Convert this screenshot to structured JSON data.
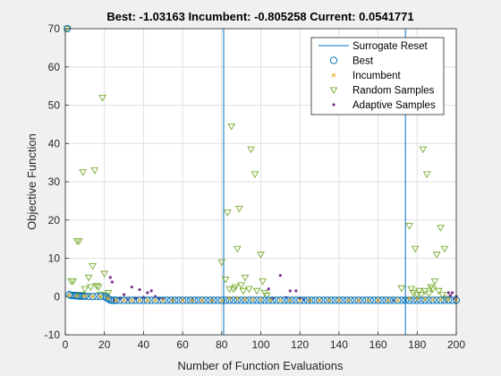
{
  "chart_data": {
    "type": "scatter",
    "title": "Best: -1.03163 Incumbent: -0.805258 Current: 0.0541771",
    "xlabel": "Number of Function Evaluations",
    "ylabel": "Objective Function",
    "xlim": [
      0,
      200
    ],
    "ylim": [
      -10,
      70
    ],
    "xticks": [
      0,
      20,
      40,
      60,
      80,
      100,
      120,
      140,
      160,
      180,
      200
    ],
    "yticks": [
      -10,
      0,
      10,
      20,
      30,
      40,
      50,
      60,
      70
    ],
    "grid": true,
    "legend_position": "top-right",
    "surrogate_resets": [
      81,
      174
    ],
    "legend": [
      {
        "label": "Surrogate Reset",
        "marker": "line",
        "color": "#0072BD"
      },
      {
        "label": "Best",
        "marker": "circle",
        "color": "#0072BD"
      },
      {
        "label": "Incumbent",
        "marker": "x",
        "color": "#EDB120"
      },
      {
        "label": "Random Samples",
        "marker": "triangle",
        "color": "#77AC30"
      },
      {
        "label": "Adaptive Samples",
        "marker": "dot",
        "color": "#7E2F8E"
      }
    ],
    "series": [
      {
        "name": "Random Samples",
        "points": [
          [
            1,
            70
          ],
          [
            3,
            4
          ],
          [
            4,
            4
          ],
          [
            5,
            0.5
          ],
          [
            6,
            14.5
          ],
          [
            7,
            14.5
          ],
          [
            8,
            0.5
          ],
          [
            9,
            32.5
          ],
          [
            10,
            2
          ],
          [
            11,
            0.2
          ],
          [
            12,
            5
          ],
          [
            13,
            2.5
          ],
          [
            14,
            8
          ],
          [
            15,
            33
          ],
          [
            16,
            2.8
          ],
          [
            17,
            2.5
          ],
          [
            18,
            0.5
          ],
          [
            19,
            52
          ],
          [
            20,
            6
          ],
          [
            21,
            0.3
          ],
          [
            22,
            1
          ],
          [
            80,
            9
          ],
          [
            82,
            4.5
          ],
          [
            83,
            22
          ],
          [
            84,
            2
          ],
          [
            85,
            44.5
          ],
          [
            86,
            2
          ],
          [
            87,
            2.5
          ],
          [
            88,
            12.5
          ],
          [
            89,
            23
          ],
          [
            90,
            3
          ],
          [
            91,
            1.5
          ],
          [
            92,
            5
          ],
          [
            94,
            2
          ],
          [
            95,
            38.5
          ],
          [
            97,
            32
          ],
          [
            98,
            1.5
          ],
          [
            100,
            11
          ],
          [
            101,
            4
          ],
          [
            102,
            1
          ],
          [
            103,
            0.3
          ],
          [
            172,
            2.2
          ],
          [
            176,
            18.5
          ],
          [
            177,
            2
          ],
          [
            178,
            1
          ],
          [
            179,
            12.5
          ],
          [
            180,
            0.5
          ],
          [
            181,
            1.5
          ],
          [
            182,
            0.5
          ],
          [
            183,
            38.5
          ],
          [
            184,
            1.5
          ],
          [
            185,
            32
          ],
          [
            186,
            0.8
          ],
          [
            187,
            2.5
          ],
          [
            188,
            2
          ],
          [
            189,
            4
          ],
          [
            190,
            11
          ],
          [
            191,
            1.5
          ],
          [
            192,
            18
          ],
          [
            193,
            0.5
          ],
          [
            194,
            12.5
          ],
          [
            195,
            -0.5
          ]
        ]
      },
      {
        "name": "Adaptive Samples",
        "points": [
          [
            23,
            5
          ],
          [
            24,
            3.8
          ],
          [
            25,
            -1
          ],
          [
            28,
            -0.5
          ],
          [
            30,
            0.5
          ],
          [
            32,
            -0.8
          ],
          [
            34,
            2.5
          ],
          [
            36,
            -0.5
          ],
          [
            38,
            1.8
          ],
          [
            40,
            -0.2
          ],
          [
            42,
            1
          ],
          [
            44,
            1.5
          ],
          [
            46,
            0
          ],
          [
            48,
            -0.5
          ],
          [
            50,
            -0.7
          ],
          [
            55,
            -0.8
          ],
          [
            60,
            -0.9
          ],
          [
            65,
            -0.9
          ],
          [
            70,
            -1
          ],
          [
            75,
            -1
          ],
          [
            104,
            2
          ],
          [
            106,
            -0.5
          ],
          [
            110,
            5.5
          ],
          [
            113,
            -0.3
          ],
          [
            115,
            1.5
          ],
          [
            118,
            1.5
          ],
          [
            120,
            -0.5
          ],
          [
            122,
            -0.8
          ],
          [
            125,
            -1
          ],
          [
            130,
            -1
          ],
          [
            140,
            -1
          ],
          [
            150,
            -1
          ],
          [
            160,
            -1
          ],
          [
            168,
            -1
          ],
          [
            196,
            1
          ],
          [
            197,
            0.3
          ],
          [
            198,
            1
          ],
          [
            199,
            -0.5
          ],
          [
            200,
            0
          ]
        ]
      },
      {
        "name": "Best",
        "points": [
          [
            1,
            70
          ],
          [
            2,
            0.5
          ],
          [
            3,
            0.3
          ],
          [
            4,
            0.3
          ],
          [
            5,
            0.2
          ],
          [
            6,
            0.2
          ],
          [
            7,
            0.1
          ],
          [
            8,
            0.1
          ],
          [
            9,
            0.1
          ],
          [
            10,
            0.1
          ],
          [
            12,
            0
          ],
          [
            14,
            0
          ],
          [
            16,
            0
          ],
          [
            18,
            0
          ],
          [
            20,
            0
          ],
          [
            21,
            -0.3
          ],
          [
            22,
            -0.6
          ],
          [
            23,
            -0.9
          ],
          [
            24,
            -1
          ],
          [
            25,
            -1
          ],
          [
            26,
            -1
          ],
          [
            28,
            -1
          ],
          [
            30,
            -1
          ],
          [
            32,
            -1
          ],
          [
            34,
            -1
          ],
          [
            36,
            -1
          ],
          [
            38,
            -1
          ],
          [
            40,
            -1
          ],
          [
            42,
            -1
          ],
          [
            44,
            -1
          ],
          [
            46,
            -1
          ],
          [
            48,
            -1
          ],
          [
            50,
            -1
          ],
          [
            52,
            -1
          ],
          [
            54,
            -1
          ],
          [
            56,
            -1
          ],
          [
            58,
            -1
          ],
          [
            60,
            -1
          ],
          [
            62,
            -1
          ],
          [
            64,
            -1
          ],
          [
            66,
            -1
          ],
          [
            68,
            -1
          ],
          [
            70,
            -1
          ],
          [
            72,
            -1
          ],
          [
            74,
            -1
          ],
          [
            76,
            -1
          ],
          [
            78,
            -1
          ],
          [
            80,
            -1
          ],
          [
            82,
            -1
          ],
          [
            84,
            -1
          ],
          [
            86,
            -1
          ],
          [
            88,
            -1
          ],
          [
            90,
            -1
          ],
          [
            92,
            -1
          ],
          [
            94,
            -1
          ],
          [
            96,
            -1
          ],
          [
            98,
            -1
          ],
          [
            100,
            -1
          ],
          [
            102,
            -1
          ],
          [
            104,
            -1
          ],
          [
            106,
            -1
          ],
          [
            108,
            -1
          ],
          [
            110,
            -1
          ],
          [
            112,
            -1
          ],
          [
            114,
            -1
          ],
          [
            116,
            -1
          ],
          [
            118,
            -1
          ],
          [
            120,
            -1
          ],
          [
            122,
            -1
          ],
          [
            124,
            -1
          ],
          [
            126,
            -1
          ],
          [
            128,
            -1
          ],
          [
            130,
            -1
          ],
          [
            132,
            -1
          ],
          [
            134,
            -1
          ],
          [
            136,
            -1
          ],
          [
            138,
            -1
          ],
          [
            140,
            -1
          ],
          [
            142,
            -1
          ],
          [
            144,
            -1
          ],
          [
            146,
            -1
          ],
          [
            148,
            -1
          ],
          [
            150,
            -1
          ],
          [
            152,
            -1
          ],
          [
            154,
            -1
          ],
          [
            156,
            -1
          ],
          [
            158,
            -1
          ],
          [
            160,
            -1
          ],
          [
            162,
            -1
          ],
          [
            164,
            -1
          ],
          [
            166,
            -1
          ],
          [
            168,
            -1
          ],
          [
            170,
            -1
          ],
          [
            172,
            -1
          ],
          [
            174,
            -1
          ],
          [
            176,
            -1
          ],
          [
            178,
            -1
          ],
          [
            180,
            -1
          ],
          [
            182,
            -1
          ],
          [
            184,
            -1
          ],
          [
            186,
            -1
          ],
          [
            188,
            -1
          ],
          [
            190,
            -1
          ],
          [
            192,
            -1
          ],
          [
            194,
            -1
          ],
          [
            196,
            -1
          ],
          [
            198,
            -1
          ],
          [
            200,
            -1
          ]
        ]
      },
      {
        "name": "Incumbent",
        "points": [
          [
            2,
            0.3
          ],
          [
            6,
            0.2
          ],
          [
            10,
            0.1
          ],
          [
            14,
            0
          ],
          [
            18,
            0
          ],
          [
            22,
            -0.5
          ],
          [
            26,
            -1
          ],
          [
            30,
            -1
          ],
          [
            34,
            -1
          ],
          [
            38,
            -1
          ],
          [
            42,
            -1
          ],
          [
            46,
            -1
          ],
          [
            50,
            -1
          ],
          [
            55,
            -1
          ],
          [
            60,
            -1
          ],
          [
            65,
            -1
          ],
          [
            70,
            -1
          ],
          [
            75,
            -1
          ],
          [
            80,
            -1
          ],
          [
            84,
            -0.5
          ],
          [
            88,
            -0.5
          ],
          [
            92,
            -0.7
          ],
          [
            96,
            -0.8
          ],
          [
            100,
            -0.8
          ],
          [
            105,
            -0.9
          ],
          [
            110,
            -1
          ],
          [
            115,
            -1
          ],
          [
            120,
            -1
          ],
          [
            125,
            -1
          ],
          [
            130,
            -1
          ],
          [
            135,
            -1
          ],
          [
            140,
            -1
          ],
          [
            145,
            -1
          ],
          [
            150,
            -1
          ],
          [
            155,
            -1
          ],
          [
            160,
            -1
          ],
          [
            165,
            -1
          ],
          [
            170,
            -1
          ],
          [
            176,
            -0.5
          ],
          [
            180,
            -0.6
          ],
          [
            184,
            -0.7
          ],
          [
            188,
            -0.8
          ],
          [
            192,
            -0.8
          ],
          [
            196,
            -0.8
          ],
          [
            200,
            -0.8
          ]
        ]
      }
    ]
  }
}
